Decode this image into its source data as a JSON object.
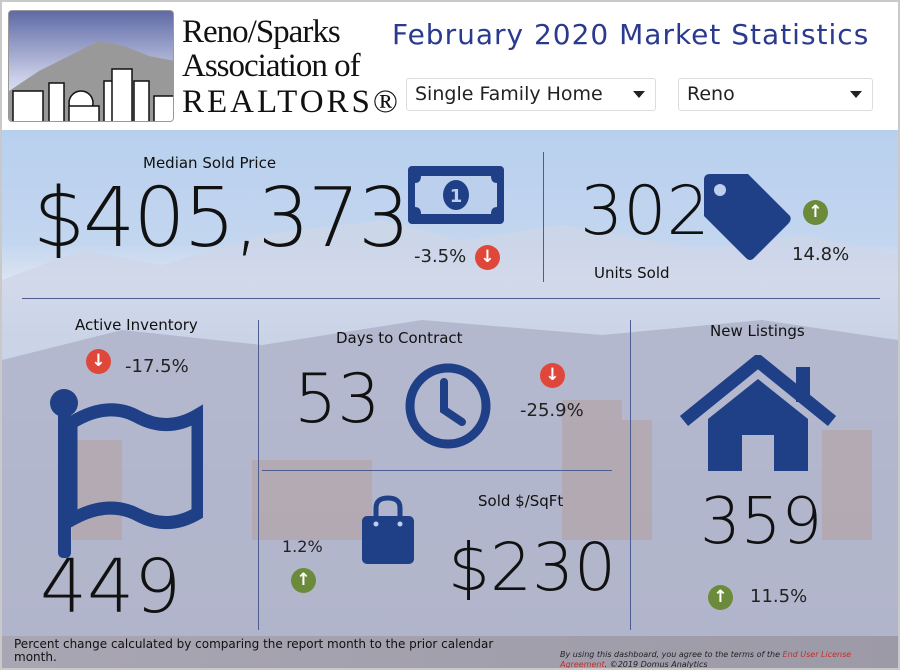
{
  "header": {
    "logo_lines": [
      "Reno/Sparks",
      "Association of",
      "REALTORS®"
    ],
    "title": "February 2020 Market Statistics",
    "property_type": "Single Family Home",
    "area": "Reno"
  },
  "colors": {
    "accent": "#1f3f86",
    "down": "#e0473b",
    "up": "#6b8a3a",
    "title": "#2a3a8e"
  },
  "metrics": {
    "median_price": {
      "label": "Median Sold Price",
      "value": "$405,373",
      "change": "-3.5%",
      "direction": "down",
      "icon": "money-icon"
    },
    "units_sold": {
      "label": "Units Sold",
      "value": "302",
      "change": "14.8%",
      "direction": "up",
      "icon": "tag-icon"
    },
    "active_inventory": {
      "label": "Active Inventory",
      "value": "449",
      "change": "-17.5%",
      "direction": "down",
      "icon": "flag-icon"
    },
    "days_to_contract": {
      "label": "Days to Contract",
      "value": "53",
      "change": "-25.9%",
      "direction": "down",
      "icon": "clock-icon"
    },
    "sold_sqft": {
      "label": "Sold $/SqFt",
      "value": "$230",
      "change": "1.2%",
      "direction": "up",
      "icon": "shopping-bag-icon"
    },
    "new_listings": {
      "label": "New Listings",
      "value": "359",
      "change": "11.5%",
      "direction": "up",
      "icon": "house-icon"
    }
  },
  "footer": {
    "note": "Percent change calculated by comparing the report month to the prior calendar month.",
    "terms_prefix": "By using this dashboard, you agree to the terms of the ",
    "terms_link": "End User License Agreement",
    "terms_suffix": ". ©2019 Domus Analytics"
  }
}
